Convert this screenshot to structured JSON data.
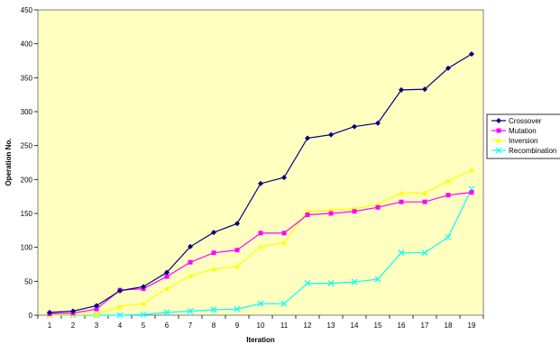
{
  "chart_data": {
    "type": "line",
    "title": "",
    "xlabel": "Iteration",
    "ylabel": "Operation No.",
    "x": [
      "1",
      "2",
      "3",
      "4",
      "5",
      "6",
      "7",
      "8",
      "9",
      "10",
      "11",
      "12",
      "13",
      "14",
      "15",
      "16",
      "17",
      "18",
      "19"
    ],
    "ylim": [
      0,
      450
    ],
    "yticks": [
      0,
      50,
      100,
      150,
      200,
      250,
      300,
      350,
      400,
      450
    ],
    "grid": false,
    "legend": "right",
    "plot_background": "#ffffc0",
    "series": [
      {
        "name": "Crossover",
        "color": "#000080",
        "marker": "diamond",
        "values": [
          4,
          6,
          14,
          36,
          42,
          63,
          101,
          122,
          135,
          194,
          203,
          261,
          266,
          278,
          283,
          332,
          333,
          364,
          385
        ]
      },
      {
        "name": "Mutation",
        "color": "#ff00ff",
        "marker": "square",
        "values": [
          2,
          3,
          9,
          37,
          39,
          57,
          78,
          92,
          96,
          121,
          121,
          148,
          150,
          153,
          159,
          167,
          167,
          177,
          181
        ]
      },
      {
        "name": "Inversion",
        "color": "#ffff00",
        "marker": "triangle",
        "values": [
          0,
          1,
          1,
          13,
          17,
          39,
          58,
          68,
          72,
          101,
          107,
          153,
          155,
          157,
          163,
          180,
          180,
          198,
          214
        ]
      },
      {
        "name": "Recombination",
        "color": "#00ffff",
        "marker": "x",
        "values": [
          0,
          0,
          0,
          0,
          1,
          4,
          6,
          8,
          9,
          17,
          17,
          47,
          47,
          49,
          53,
          92,
          92,
          115,
          186
        ]
      }
    ]
  }
}
